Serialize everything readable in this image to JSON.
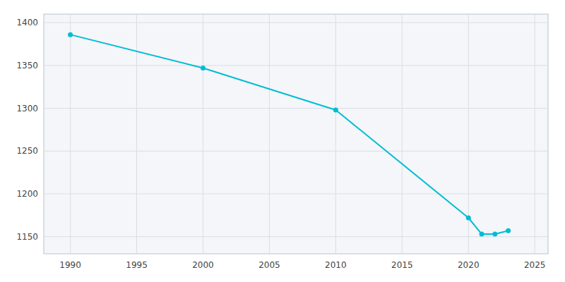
{
  "chart_data": {
    "type": "line",
    "x": [
      1990,
      2000,
      2010,
      2020,
      2021,
      2022,
      2023
    ],
    "values": [
      1386,
      1347,
      1298,
      1172,
      1153,
      1153,
      1157
    ],
    "color": "#00BCD4",
    "marker": "circle",
    "xlim": [
      1988,
      2026
    ],
    "ylim": [
      1130,
      1410
    ],
    "xticks": [
      1990,
      1995,
      2000,
      2005,
      2010,
      2015,
      2020,
      2025
    ],
    "yticks": [
      1150,
      1200,
      1250,
      1300,
      1350,
      1400
    ],
    "grid": true
  }
}
